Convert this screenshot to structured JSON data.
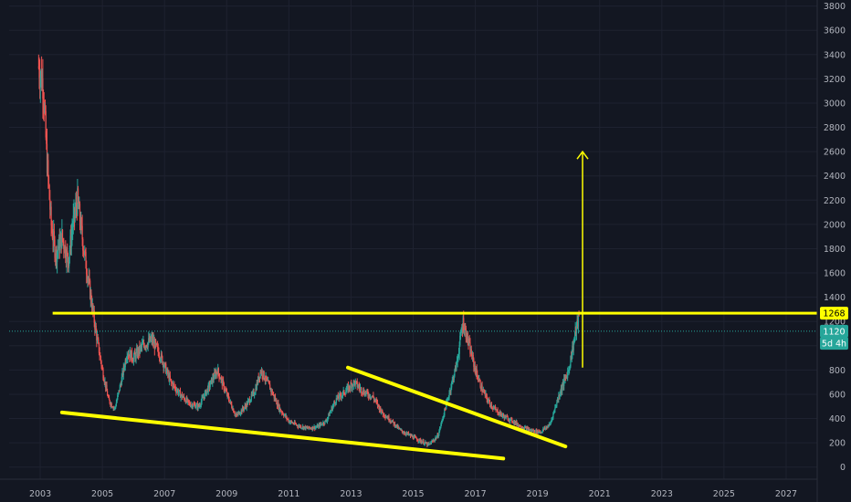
{
  "chart_data": {
    "type": "candlestick",
    "x_range": [
      2002.0,
      2028.0
    ],
    "y_range": [
      -100,
      3850
    ],
    "x_ticks": [
      "2003",
      "2005",
      "2007",
      "2009",
      "2011",
      "2013",
      "2015",
      "2017",
      "2019",
      "2021",
      "2023",
      "2025",
      "2027"
    ],
    "y_ticks": [
      "0",
      "200",
      "400",
      "600",
      "800",
      "1000",
      "1200",
      "1400",
      "1600",
      "1800",
      "2000",
      "2200",
      "2400",
      "2600",
      "2800",
      "3000",
      "3200",
      "3400",
      "3600",
      "3800"
    ],
    "price_path": [
      [
        2002.95,
        3300
      ],
      [
        2003.1,
        3150
      ],
      [
        2003.2,
        2600
      ],
      [
        2003.35,
        2000
      ],
      [
        2003.5,
        1750
      ],
      [
        2003.7,
        1900
      ],
      [
        2003.9,
        1700
      ],
      [
        2004.05,
        2000
      ],
      [
        2004.2,
        2200
      ],
      [
        2004.4,
        1800
      ],
      [
        2004.6,
        1450
      ],
      [
        2004.8,
        1100
      ],
      [
        2005.0,
        800
      ],
      [
        2005.2,
        550
      ],
      [
        2005.4,
        480
      ],
      [
        2005.6,
        700
      ],
      [
        2005.8,
        950
      ],
      [
        2006.0,
        900
      ],
      [
        2006.3,
        1000
      ],
      [
        2006.6,
        1050
      ],
      [
        2006.9,
        900
      ],
      [
        2007.2,
        700
      ],
      [
        2007.5,
        600
      ],
      [
        2007.8,
        520
      ],
      [
        2008.1,
        500
      ],
      [
        2008.4,
        650
      ],
      [
        2008.7,
        800
      ],
      [
        2009.0,
        600
      ],
      [
        2009.3,
        420
      ],
      [
        2009.6,
        500
      ],
      [
        2009.9,
        620
      ],
      [
        2010.1,
        800
      ],
      [
        2010.4,
        650
      ],
      [
        2010.7,
        480
      ],
      [
        2011.0,
        380
      ],
      [
        2011.3,
        340
      ],
      [
        2011.6,
        320
      ],
      [
        2011.9,
        330
      ],
      [
        2012.2,
        380
      ],
      [
        2012.5,
        550
      ],
      [
        2012.8,
        620
      ],
      [
        2013.1,
        700
      ],
      [
        2013.4,
        620
      ],
      [
        2013.7,
        580
      ],
      [
        2014.0,
        450
      ],
      [
        2014.3,
        380
      ],
      [
        2014.6,
        300
      ],
      [
        2014.9,
        260
      ],
      [
        2015.2,
        220
      ],
      [
        2015.5,
        180
      ],
      [
        2015.8,
        260
      ],
      [
        2016.1,
        550
      ],
      [
        2016.4,
        850
      ],
      [
        2016.6,
        1200
      ],
      [
        2016.8,
        1000
      ],
      [
        2017.0,
        800
      ],
      [
        2017.2,
        650
      ],
      [
        2017.4,
        550
      ],
      [
        2017.6,
        480
      ],
      [
        2017.9,
        420
      ],
      [
        2018.2,
        380
      ],
      [
        2018.5,
        330
      ],
      [
        2018.8,
        300
      ],
      [
        2019.1,
        290
      ],
      [
        2019.4,
        350
      ],
      [
        2019.7,
        600
      ],
      [
        2020.0,
        800
      ],
      [
        2020.25,
        1150
      ],
      [
        2020.35,
        1250
      ]
    ],
    "annotations": [
      {
        "type": "horizontal_line",
        "price": 1268,
        "x_from": 2003.4,
        "color": "#ffff00"
      },
      {
        "type": "horizontal_line",
        "price": 1120,
        "color": "#26a69a",
        "dotted": true
      },
      {
        "type": "trend_line",
        "from": [
          2003.7,
          450
        ],
        "to": [
          2017.9,
          70
        ],
        "color": "#ffff00"
      },
      {
        "type": "trend_line",
        "from": [
          2012.9,
          820
        ],
        "to": [
          2019.9,
          170
        ],
        "color": "#ffff00"
      },
      {
        "type": "arrow_up",
        "x": 2020.45,
        "from": 820,
        "to": 2600,
        "color": "#ffff00"
      }
    ],
    "price_labels": [
      {
        "text": "1268",
        "price": 1268,
        "bg": "#ffff00",
        "fg": "#000000"
      },
      {
        "text": "1120",
        "price": 1120,
        "bg": "#26a69a",
        "fg": "#ffffff"
      },
      {
        "text": "5d 4h",
        "price": 1020,
        "bg": "#26a69a",
        "fg": "#ffffff"
      }
    ],
    "colors": {
      "background": "#131722",
      "grid": "#1e2230",
      "axis_text": "#b2b5be",
      "up": "#26a69a",
      "down": "#ef5350",
      "annotation": "#ffff00"
    }
  }
}
